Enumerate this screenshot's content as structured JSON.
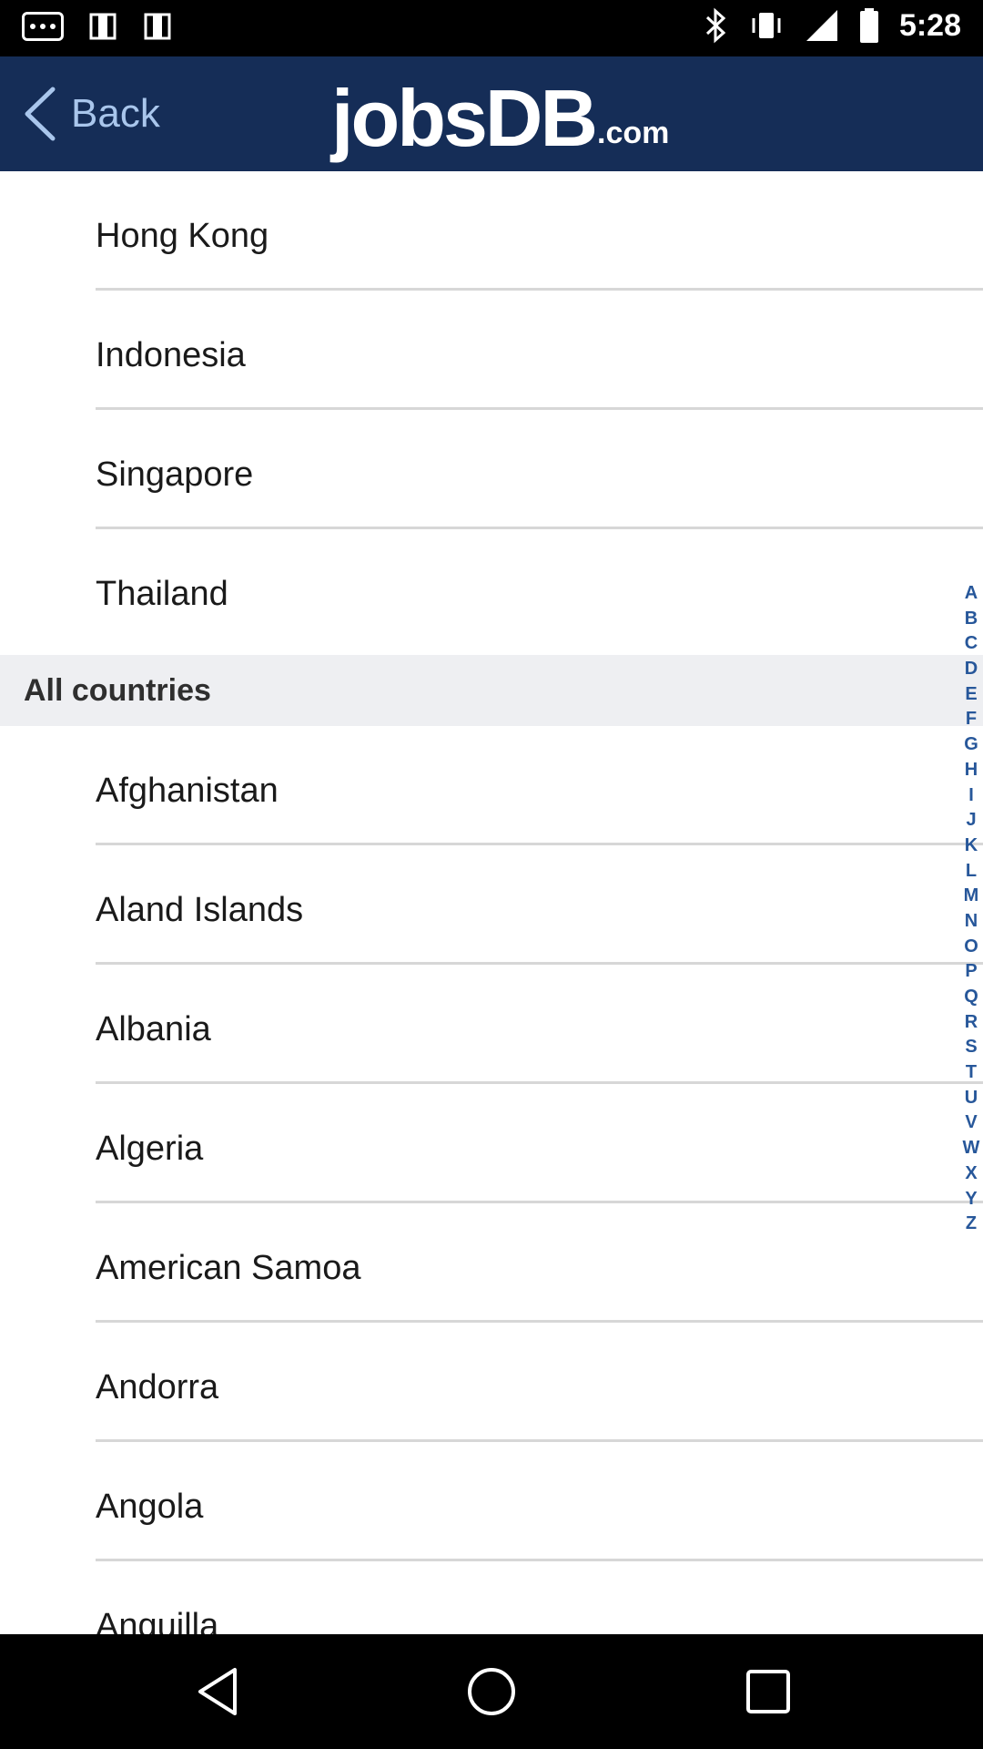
{
  "status_bar": {
    "time": "5:28",
    "icons": [
      "more-dots-icon",
      "image-icon",
      "image-icon",
      "bluetooth-icon",
      "vibrate-icon",
      "signal-icon",
      "battery-icon"
    ]
  },
  "header": {
    "back_label": "Back",
    "logo_main": "jobsDB",
    "logo_suffix": ".com",
    "background": "#152d57"
  },
  "featured_countries": [
    "Hong Kong",
    "Indonesia",
    "Singapore",
    "Thailand"
  ],
  "section_header": "All countries",
  "countries": [
    "Afghanistan",
    "Aland Islands",
    "Albania",
    "Algeria",
    "American Samoa",
    "Andorra",
    "Angola",
    "Anguilla"
  ],
  "alphabet_index": [
    "A",
    "B",
    "C",
    "D",
    "E",
    "F",
    "G",
    "H",
    "I",
    "J",
    "K",
    "L",
    "M",
    "N",
    "O",
    "P",
    "Q",
    "R",
    "S",
    "T",
    "U",
    "V",
    "W",
    "X",
    "Y",
    "Z"
  ],
  "nav_bar": {
    "icons": [
      "back-triangle-icon",
      "home-circle-icon",
      "recents-square-icon"
    ]
  },
  "colors": {
    "accent": "#27579a",
    "header_bg": "#152d57",
    "back_text": "#a9c6ec",
    "section_bg": "#eeeff2"
  }
}
